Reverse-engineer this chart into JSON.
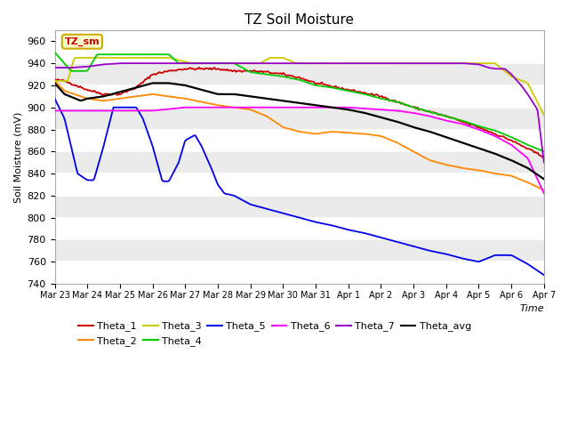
{
  "title": "TZ Soil Moisture",
  "ylabel": "Soil Moisture (mV)",
  "xlabel": "Time",
  "ylim": [
    740,
    970
  ],
  "yticks": [
    740,
    760,
    780,
    800,
    820,
    840,
    860,
    880,
    900,
    920,
    940,
    960
  ],
  "x_labels": [
    "Mar 23",
    "Mar 24",
    "Mar 25",
    "Mar 26",
    "Mar 27",
    "Mar 28",
    "Mar 29",
    "Mar 30",
    "Mar 31",
    "Apr 1",
    "Apr 2",
    "Apr 3",
    "Apr 4",
    "Apr 5",
    "Apr 6",
    "Apr 7"
  ],
  "bg_color": "#ffffff",
  "band_color": "#ebebeb",
  "legend_box_color": "#ffffcc",
  "legend_box_edge": "#ccaa00",
  "annotation_text": "TZ_sm",
  "annotation_color": "#cc0000",
  "series": {
    "Theta_1": {
      "color": "#cc0000"
    },
    "Theta_2": {
      "color": "#ff8800"
    },
    "Theta_3": {
      "color": "#cccc00"
    },
    "Theta_4": {
      "color": "#00cc00"
    },
    "Theta_5": {
      "color": "#0000ee"
    },
    "Theta_6": {
      "color": "#ff00ff"
    },
    "Theta_7": {
      "color": "#9900cc"
    },
    "Theta_avg": {
      "color": "#000000"
    }
  }
}
